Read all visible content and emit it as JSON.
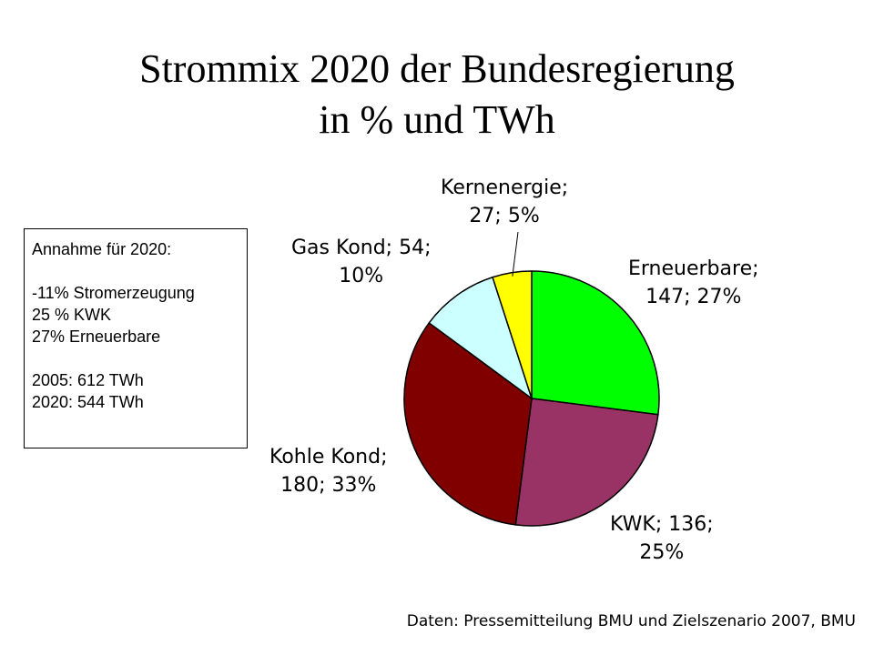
{
  "title_line1": "Strommix 2020 der Bundesregierung",
  "title_line2": "in % und TWh",
  "notes": {
    "heading": "Annahme für 2020:",
    "lines": [
      "-11% Stromerzeugung",
      "25 % KWK",
      "27% Erneuerbare"
    ],
    "years": [
      "2005: 612 TWh",
      "2020: 544 TWh"
    ]
  },
  "source": "Daten: Pressemitteilung BMU und Zielszenario 2007, BMU",
  "chart_data": {
    "type": "pie",
    "unit": "TWh",
    "slices": [
      {
        "name": "Erneuerbare",
        "value": 147,
        "percent": 27,
        "color": "#00ff00",
        "label_line1": "Erneuerbare;",
        "label_line2": "147; 27%"
      },
      {
        "name": "KWK",
        "value": 136,
        "percent": 25,
        "color": "#993366",
        "label_line1": "KWK; 136;",
        "label_line2": "25%"
      },
      {
        "name": "Kohle Kond",
        "value": 180,
        "percent": 33,
        "color": "#800000",
        "label_line1": "Kohle Kond;",
        "label_line2": "180; 33%"
      },
      {
        "name": "Gas Kond",
        "value": 54,
        "percent": 10,
        "color": "#ccffff",
        "label_line1": "Gas Kond; 54;",
        "label_line2": "10%"
      },
      {
        "name": "Kernenergie",
        "value": 27,
        "percent": 5,
        "color": "#ffff00",
        "label_line1": "Kernenergie;",
        "label_line2": "27; 5%"
      }
    ]
  }
}
